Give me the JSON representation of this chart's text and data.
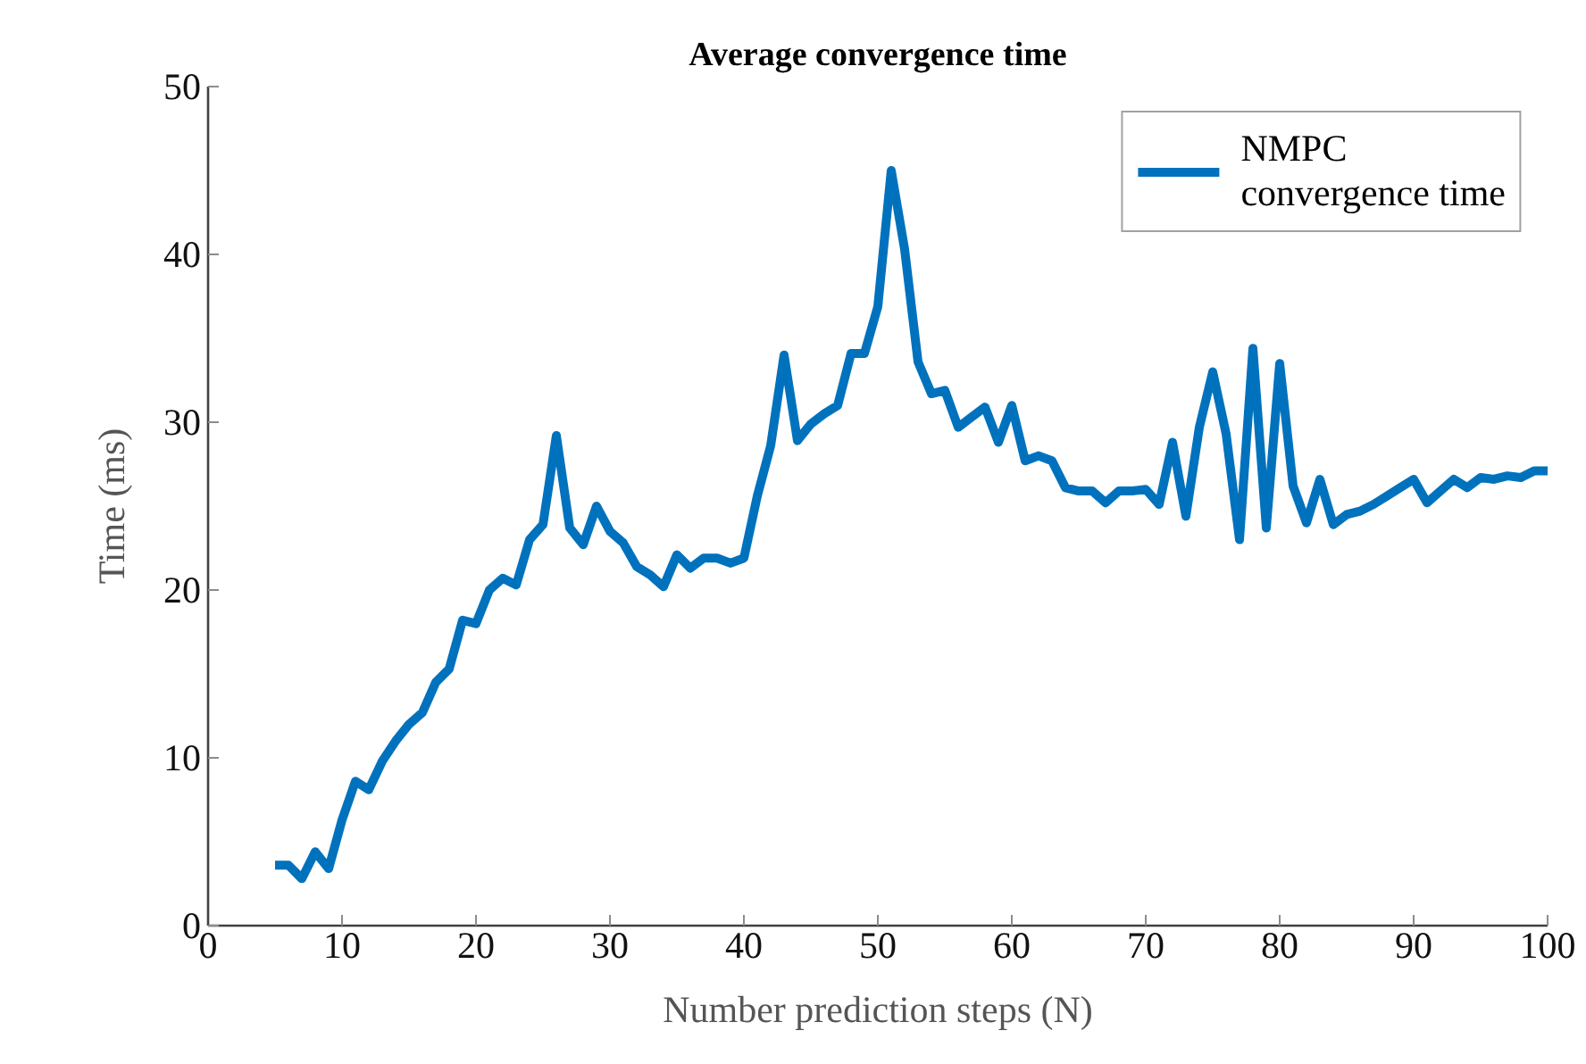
{
  "chart_data": {
    "type": "line",
    "title": "Average convergence time",
    "xlabel": "Number prediction steps (N)",
    "ylabel": "Time (ms)",
    "x": [
      5,
      6,
      7,
      8,
      9,
      10,
      11,
      12,
      13,
      14,
      15,
      16,
      17,
      18,
      19,
      20,
      21,
      22,
      23,
      24,
      25,
      26,
      27,
      28,
      29,
      30,
      31,
      32,
      33,
      34,
      35,
      36,
      37,
      38,
      39,
      40,
      41,
      42,
      43,
      44,
      45,
      46,
      47,
      48,
      49,
      50,
      51,
      52,
      53,
      54,
      55,
      56,
      57,
      58,
      59,
      60,
      61,
      62,
      63,
      64,
      65,
      66,
      67,
      68,
      69,
      70,
      71,
      72,
      73,
      74,
      75,
      76,
      77,
      78,
      79,
      80,
      81,
      82,
      83,
      84,
      85,
      86,
      87,
      88,
      89,
      90,
      91,
      92,
      93,
      94,
      95,
      96,
      97,
      98,
      99,
      100
    ],
    "series": [
      {
        "name": "NMPC convergence time",
        "color": "#0072bd",
        "values": [
          3.6,
          3.6,
          2.8,
          4.4,
          3.4,
          6.3,
          8.6,
          8.1,
          9.8,
          11.0,
          12.0,
          12.7,
          14.5,
          15.3,
          18.2,
          18.0,
          20.0,
          20.7,
          20.3,
          23.0,
          23.9,
          29.2,
          23.7,
          22.7,
          25.0,
          23.5,
          22.8,
          21.4,
          20.9,
          20.2,
          22.1,
          21.3,
          21.9,
          21.9,
          21.6,
          21.9,
          25.6,
          28.6,
          34.0,
          28.9,
          29.9,
          30.5,
          31.0,
          34.1,
          34.1,
          36.9,
          45.0,
          40.3,
          33.6,
          31.7,
          31.9,
          29.7,
          30.3,
          30.9,
          28.8,
          31.0,
          27.7,
          28.0,
          27.7,
          26.1,
          25.9,
          25.9,
          25.2,
          25.9,
          25.9,
          26.0,
          25.1,
          28.8,
          24.4,
          29.7,
          33.0,
          29.3,
          23.0,
          34.4,
          23.7,
          33.5,
          26.2,
          24.0,
          26.6,
          23.9,
          24.5,
          24.7,
          25.1,
          25.6,
          26.1,
          26.6,
          25.2,
          25.9,
          26.6,
          26.1,
          26.7,
          26.6,
          26.8,
          26.7,
          27.1,
          27.1
        ]
      }
    ],
    "xlim": [
      0,
      100
    ],
    "ylim": [
      0,
      50
    ],
    "xticks": [
      0,
      10,
      20,
      30,
      40,
      50,
      60,
      70,
      80,
      90,
      100
    ],
    "yticks": [
      0,
      10,
      20,
      30,
      40,
      50
    ],
    "legend": "top right"
  }
}
